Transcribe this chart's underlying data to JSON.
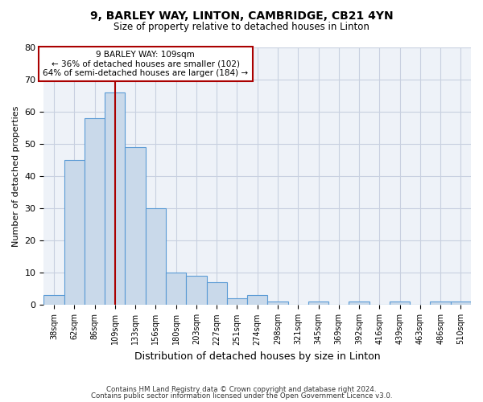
{
  "title": "9, BARLEY WAY, LINTON, CAMBRIDGE, CB21 4YN",
  "subtitle": "Size of property relative to detached houses in Linton",
  "xlabel": "Distribution of detached houses by size in Linton",
  "ylabel": "Number of detached properties",
  "bin_labels": [
    "38sqm",
    "62sqm",
    "86sqm",
    "109sqm",
    "133sqm",
    "156sqm",
    "180sqm",
    "203sqm",
    "227sqm",
    "251sqm",
    "274sqm",
    "298sqm",
    "321sqm",
    "345sqm",
    "369sqm",
    "392sqm",
    "416sqm",
    "439sqm",
    "463sqm",
    "486sqm",
    "510sqm"
  ],
  "bar_heights": [
    3,
    45,
    58,
    66,
    49,
    30,
    10,
    9,
    7,
    2,
    3,
    1,
    0,
    1,
    0,
    1,
    0,
    1,
    0,
    1,
    1
  ],
  "bar_color": "#c9d9ea",
  "bar_edge_color": "#5b9bd5",
  "property_line_x": 3,
  "property_sqm": 109,
  "annotation_text_line1": "9 BARLEY WAY: 109sqm",
  "annotation_text_line2": "← 36% of detached houses are smaller (102)",
  "annotation_text_line3": "64% of semi-detached houses are larger (184) →",
  "vline_color": "#aa0000",
  "annotation_box_edge": "#aa0000",
  "ylim": [
    0,
    80
  ],
  "yticks": [
    0,
    10,
    20,
    30,
    40,
    50,
    60,
    70,
    80
  ],
  "footer1": "Contains HM Land Registry data © Crown copyright and database right 2024.",
  "footer2": "Contains public sector information licensed under the Open Government Licence v3.0.",
  "bg_color": "#eef2f8",
  "grid_color": "#c8d0e0"
}
